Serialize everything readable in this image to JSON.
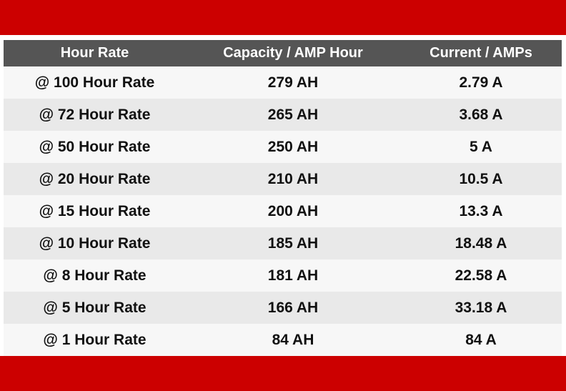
{
  "table": {
    "headers": [
      "Hour Rate",
      "Capacity / AMP Hour",
      "Current / AMPs"
    ],
    "rows": [
      [
        "@ 100 Hour Rate",
        "279 AH",
        "2.79 A"
      ],
      [
        "@ 72 Hour Rate",
        "265 AH",
        "3.68 A"
      ],
      [
        "@ 50 Hour Rate",
        "250 AH",
        "5 A"
      ],
      [
        "@ 20 Hour Rate",
        "210 AH",
        "10.5 A"
      ],
      [
        "@ 15 Hour Rate",
        "200 AH",
        "13.3 A"
      ],
      [
        "@ 10 Hour Rate",
        "185 AH",
        "18.48 A"
      ],
      [
        "@ 8 Hour Rate",
        "181 AH",
        "22.58 A"
      ],
      [
        "@ 5 Hour Rate",
        "166 AH",
        "33.18 A"
      ],
      [
        "@ 1 Hour Rate",
        "84 AH",
        "84 A"
      ]
    ]
  },
  "colors": {
    "accent_red": "#cc0000",
    "header_bg": "#555555",
    "row_light": "#f7f7f7",
    "row_dark": "#e9e9e9"
  }
}
